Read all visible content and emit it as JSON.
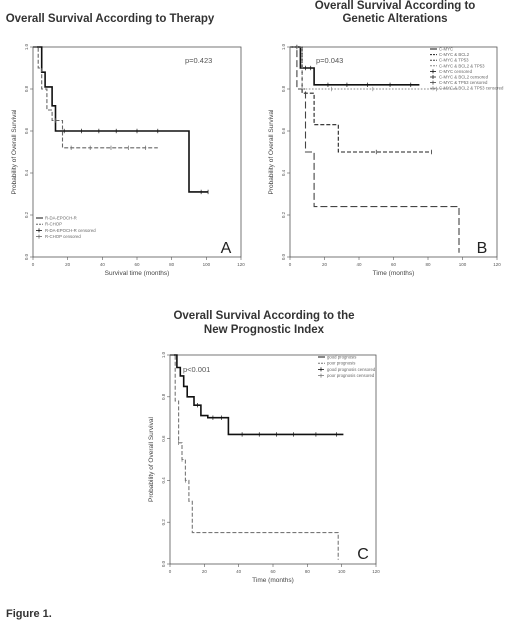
{
  "figure_label": "Figure 1.",
  "chart_data": [
    {
      "type": "line",
      "title": "Overall Survival According to Therapy",
      "xlabel": "Survival time (months)",
      "ylabel": "Probability of Overall Survival",
      "p_value": "p=0.423",
      "panel_letter": "A",
      "xlim": [
        0,
        120
      ],
      "ylim": [
        0,
        1
      ],
      "x_ticks": [
        "0",
        "20",
        "40",
        "60",
        "80",
        "100",
        "120"
      ],
      "y_ticks": [
        "0.0",
        "0.2",
        "0.4",
        "0.6",
        "0.8",
        "1.0"
      ],
      "legend_position": "bottom-left",
      "series": [
        {
          "name": "R-CHOP",
          "style": "solid",
          "color": "#111111",
          "steps": [
            [
              0,
              1
            ],
            [
              5,
              1
            ],
            [
              5,
              0.88
            ],
            [
              7,
              0.88
            ],
            [
              7,
              0.81
            ],
            [
              11,
              0.81
            ],
            [
              11,
              0.72
            ],
            [
              13,
              0.72
            ],
            [
              13,
              0.6
            ],
            [
              90,
              0.6
            ],
            [
              90,
              0.31
            ],
            [
              101,
              0.31
            ]
          ],
          "censors": [
            [
              18,
              0.6
            ],
            [
              28,
              0.6
            ],
            [
              38,
              0.6
            ],
            [
              48,
              0.6
            ],
            [
              60,
              0.6
            ],
            [
              72,
              0.6
            ],
            [
              97,
              0.31
            ],
            [
              101,
              0.31
            ]
          ]
        },
        {
          "name": "R-DA-EPOCH-R",
          "style": "dashed",
          "color": "#666666",
          "steps": [
            [
              0,
              1
            ],
            [
              3,
              1
            ],
            [
              3,
              0.9
            ],
            [
              5,
              0.9
            ],
            [
              5,
              0.8
            ],
            [
              8,
              0.8
            ],
            [
              8,
              0.7
            ],
            [
              11,
              0.7
            ],
            [
              11,
              0.65
            ],
            [
              17,
              0.65
            ],
            [
              17,
              0.52
            ],
            [
              72,
              0.52
            ]
          ],
          "censors": [
            [
              13,
              0.65
            ],
            [
              22,
              0.52
            ],
            [
              33,
              0.52
            ],
            [
              45,
              0.52
            ],
            [
              55,
              0.52
            ],
            [
              65,
              0.52
            ]
          ]
        }
      ],
      "legend": [
        "R-DA-EPOCH-R",
        "R-CHOP",
        "R-DA-EPOCH-R censored",
        "R-CHOP censored"
      ]
    },
    {
      "type": "line",
      "title": "Overall Survival According to Genetic Alterations",
      "title_lines": [
        "Overall Survival According to",
        "Genetic Alterations"
      ],
      "xlabel": "Time (months)",
      "ylabel": "Probability of Overall Survival",
      "p_value": "p=0.043",
      "panel_letter": "B",
      "xlim": [
        0,
        120
      ],
      "ylim": [
        0,
        1
      ],
      "x_ticks": [
        "0",
        "20",
        "40",
        "60",
        "80",
        "100",
        "120"
      ],
      "y_ticks": [
        "0.0",
        "0.2",
        "0.4",
        "0.6",
        "0.8",
        "1.0"
      ],
      "legend_position": "top-right",
      "series": [
        {
          "name": "C-MYC",
          "style": "solid",
          "color": "#111111",
          "steps": [
            [
              0,
              1
            ],
            [
              6,
              1
            ],
            [
              6,
              0.9
            ],
            [
              14,
              0.9
            ],
            [
              14,
              0.82
            ],
            [
              75,
              0.82
            ]
          ],
          "censors": [
            [
              4,
              1
            ],
            [
              9,
              0.9
            ],
            [
              12,
              0.9
            ],
            [
              22,
              0.82
            ],
            [
              33,
              0.82
            ],
            [
              45,
              0.82
            ],
            [
              58,
              0.82
            ],
            [
              70,
              0.82
            ]
          ]
        },
        {
          "name": "C-MYC & BCL2",
          "style": "dashed",
          "color": "#222222",
          "steps": [
            [
              0,
              1
            ],
            [
              7,
              1
            ],
            [
              7,
              0.78
            ],
            [
              14,
              0.78
            ],
            [
              14,
              0.63
            ],
            [
              28,
              0.63
            ],
            [
              28,
              0.5
            ],
            [
              82,
              0.5
            ]
          ],
          "censors": [
            [
              50,
              0.5
            ],
            [
              82,
              0.5
            ]
          ]
        },
        {
          "name": "C-MYC & TP53",
          "style": "longdash",
          "color": "#444444",
          "steps": [
            [
              0,
              1
            ],
            [
              4,
              1
            ],
            [
              4,
              0.8
            ],
            [
              9,
              0.8
            ],
            [
              9,
              0.5
            ],
            [
              14,
              0.5
            ],
            [
              14,
              0.24
            ],
            [
              98,
              0.24
            ],
            [
              98,
              0.02
            ]
          ],
          "censors": []
        },
        {
          "name": "C-MYC & BCL2 & TP53",
          "style": "dotted",
          "color": "#888888",
          "steps": [
            [
              0,
              1
            ],
            [
              7,
              1
            ],
            [
              7,
              0.8
            ],
            [
              98,
              0.8
            ]
          ],
          "censors": [
            [
              24,
              0.8
            ],
            [
              48,
              0.8
            ],
            [
              85,
              0.8
            ]
          ]
        }
      ],
      "legend": [
        "C-MYC",
        "C-MYC & BCL2",
        "C-MYC & TP53",
        "C-MYC & BCL2 & TP53",
        "C-MYC censored",
        "C-MYC & BCL2 censored",
        "C-MYC & TP53 censored",
        "C-MYC & BCL2 & TP53 censored"
      ]
    },
    {
      "type": "line",
      "title": "Overall Survival According to the New Prognostic Index",
      "title_lines": [
        "Overall Survival According to the",
        "New Prognostic Index"
      ],
      "xlabel": "Time (months)",
      "ylabel": "Probability of Overall Survival",
      "p_value": "p<0.001",
      "panel_letter": "C",
      "xlim": [
        0,
        120
      ],
      "ylim": [
        0,
        1
      ],
      "x_ticks": [
        "0",
        "20",
        "40",
        "60",
        "80",
        "100",
        "120"
      ],
      "y_ticks": [
        "0.0",
        "0.2",
        "0.4",
        "0.6",
        "0.8",
        "1.0"
      ],
      "legend_position": "top-right",
      "series": [
        {
          "name": "good prognosis",
          "style": "solid",
          "color": "#111111",
          "steps": [
            [
              0,
              1
            ],
            [
              4,
              1
            ],
            [
              4,
              0.94
            ],
            [
              6,
              0.94
            ],
            [
              6,
              0.9
            ],
            [
              8,
              0.9
            ],
            [
              8,
              0.85
            ],
            [
              10,
              0.85
            ],
            [
              10,
              0.8
            ],
            [
              14,
              0.8
            ],
            [
              14,
              0.76
            ],
            [
              18,
              0.76
            ],
            [
              18,
              0.71
            ],
            [
              22,
              0.71
            ],
            [
              22,
              0.7
            ],
            [
              34,
              0.7
            ],
            [
              34,
              0.62
            ],
            [
              101,
              0.62
            ]
          ],
          "censors": [
            [
              16,
              0.76
            ],
            [
              25,
              0.7
            ],
            [
              30,
              0.7
            ],
            [
              42,
              0.62
            ],
            [
              52,
              0.62
            ],
            [
              62,
              0.62
            ],
            [
              72,
              0.62
            ],
            [
              85,
              0.62
            ],
            [
              97,
              0.62
            ]
          ]
        },
        {
          "name": "poor prognosis",
          "style": "dashed",
          "color": "#777777",
          "steps": [
            [
              0,
              1
            ],
            [
              3,
              1
            ],
            [
              3,
              0.78
            ],
            [
              5,
              0.78
            ],
            [
              5,
              0.58
            ],
            [
              7,
              0.58
            ],
            [
              7,
              0.5
            ],
            [
              9,
              0.5
            ],
            [
              9,
              0.4
            ],
            [
              11,
              0.4
            ],
            [
              11,
              0.3
            ],
            [
              13,
              0.3
            ],
            [
              13,
              0.15
            ],
            [
              98,
              0.15
            ],
            [
              98,
              0.02
            ]
          ],
          "censors": [
            [
              5,
              0.58
            ],
            [
              7,
              0.5
            ],
            [
              9,
              0.4
            ]
          ]
        }
      ],
      "legend": [
        "good prognosis",
        "poor prognosis",
        "good prognosis censored",
        "poor prognosis censored"
      ]
    }
  ]
}
